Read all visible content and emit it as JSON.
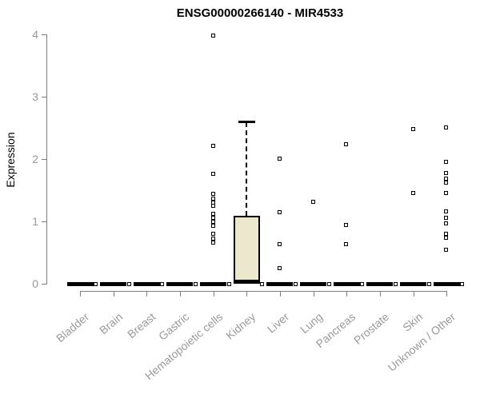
{
  "chart_data": {
    "type": "boxplot",
    "title": "ENSG00000266140 - MIR4533",
    "ylabel": "Expression",
    "xlabel": "",
    "ylim": [
      0,
      4
    ],
    "yticks": [
      0,
      1,
      2,
      3,
      4
    ],
    "grid": false,
    "legend": null,
    "xticklabel_angle": 40,
    "categories": [
      "Bladder",
      "Brain",
      "Breast",
      "Gastric",
      "Hematopoietic cells",
      "Kidney",
      "Liver",
      "Lung",
      "Pancreas",
      "Prostate",
      "Skin",
      "Unknown / Other"
    ],
    "boxes": [
      {
        "category": "Bladder",
        "median": 0,
        "q1": 0,
        "q3": 0,
        "whisker_low": 0,
        "whisker_high": 0,
        "outliers": [],
        "zero_point": true
      },
      {
        "category": "Brain",
        "median": 0,
        "q1": 0,
        "q3": 0,
        "whisker_low": 0,
        "whisker_high": 0,
        "outliers": [],
        "zero_point": true
      },
      {
        "category": "Breast",
        "median": 0,
        "q1": 0,
        "q3": 0,
        "whisker_low": 0,
        "whisker_high": 0,
        "outliers": [],
        "zero_point": true
      },
      {
        "category": "Gastric",
        "median": 0,
        "q1": 0,
        "q3": 0,
        "whisker_low": 0,
        "whisker_high": 0,
        "outliers": [],
        "zero_point": true
      },
      {
        "category": "Hematopoietic cells",
        "median": 0,
        "q1": 0,
        "q3": 0,
        "whisker_low": 0,
        "whisker_high": 0,
        "outliers": [
          3.98,
          2.2,
          1.76,
          1.44,
          1.36,
          1.3,
          1.24,
          1.12,
          1.05,
          0.99,
          0.92,
          0.79,
          0.72,
          0.66
        ],
        "zero_point": true
      },
      {
        "category": "Kidney",
        "median": 0.03,
        "q1": 0,
        "q3": 1.09,
        "whisker_low": 0,
        "whisker_high": 2.6,
        "outliers": [],
        "zero_point": true
      },
      {
        "category": "Liver",
        "median": 0,
        "q1": 0,
        "q3": 0,
        "whisker_low": 0,
        "whisker_high": 0,
        "outliers": [
          2.0,
          1.14,
          0.63,
          0.24
        ],
        "zero_point": true
      },
      {
        "category": "Lung",
        "median": 0,
        "q1": 0,
        "q3": 0,
        "whisker_low": 0,
        "whisker_high": 0,
        "outliers": [
          1.31
        ],
        "zero_point": true
      },
      {
        "category": "Pancreas",
        "median": 0,
        "q1": 0,
        "q3": 0,
        "whisker_low": 0,
        "whisker_high": 0,
        "outliers": [
          2.23,
          0.94,
          0.63
        ],
        "zero_point": true
      },
      {
        "category": "Prostate",
        "median": 0,
        "q1": 0,
        "q3": 0,
        "whisker_low": 0,
        "whisker_high": 0,
        "outliers": [],
        "zero_point": true
      },
      {
        "category": "Skin",
        "median": 0,
        "q1": 0,
        "q3": 0,
        "whisker_low": 0,
        "whisker_high": 0,
        "outliers": [
          2.47,
          1.45
        ],
        "zero_point": true
      },
      {
        "category": "Unknown / Other",
        "median": 0,
        "q1": 0,
        "q3": 0,
        "whisker_low": 0,
        "whisker_high": 0,
        "outliers": [
          2.5,
          1.95,
          1.77,
          1.68,
          1.62,
          1.45,
          1.15,
          1.05,
          0.96,
          0.79,
          0.73,
          0.54
        ],
        "zero_point": true
      }
    ]
  },
  "colors": {
    "background": "#ffffff",
    "box_fill": "#ECE8CE",
    "box_border": "#000000",
    "median": "#000000",
    "whisker": "#000000",
    "outlier": "#000000",
    "axis_line": "#7e7e7e",
    "axis_text": "#9a9a9a",
    "title_text": "#000000"
  }
}
